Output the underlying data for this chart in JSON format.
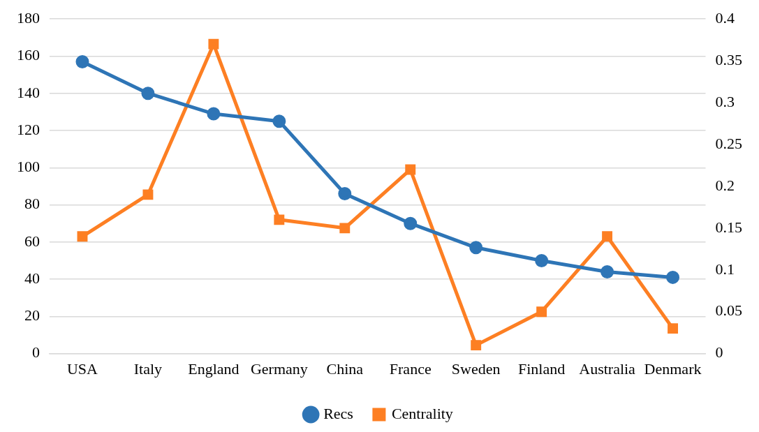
{
  "chart_data": {
    "type": "line",
    "categories": [
      "USA",
      "Italy",
      "England",
      "Germany",
      "China",
      "France",
      "Sweden",
      "Finland",
      "Australia",
      "Denmark"
    ],
    "series": [
      {
        "name": "Recs",
        "color": "#2e75b6",
        "values": [
          157,
          140,
          129,
          125,
          86,
          70,
          57,
          50,
          44,
          41
        ],
        "marker": "circle"
      },
      {
        "name": "Centrality",
        "color": "#fd7f23",
        "values": [
          0.14,
          0.19,
          0.37,
          0.16,
          0.15,
          0.22,
          0.01,
          0.05,
          0.14,
          0.03
        ],
        "axis": "y2",
        "marker": "square"
      }
    ],
    "ylim": [
      0,
      180
    ],
    "yticks": [
      0,
      20,
      40,
      60,
      80,
      100,
      120,
      140,
      160,
      180
    ],
    "y2lim": [
      0,
      0.4
    ],
    "y2ticks": [
      0,
      0.05,
      0.1,
      0.15,
      0.2,
      0.25,
      0.3,
      0.35,
      0.4
    ],
    "grid": "y",
    "legend": "bottom"
  }
}
